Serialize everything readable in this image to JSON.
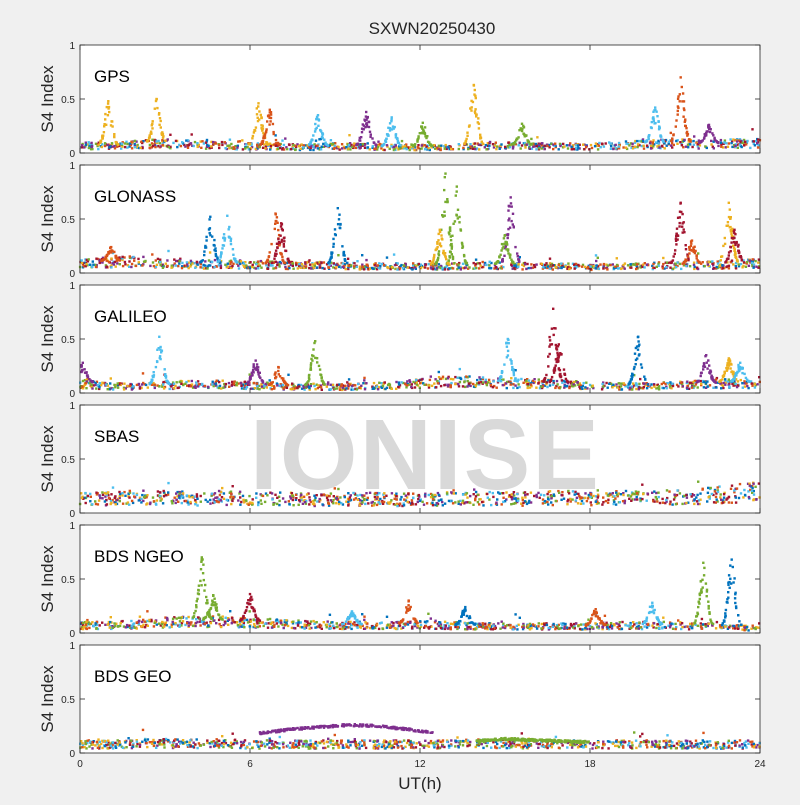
{
  "figure": {
    "title": "SXWN20250430",
    "xlabel": "UT(h)",
    "watermark": "IONISE"
  },
  "colors": {
    "background": "#f0f0f0",
    "axes_background": "#ffffff",
    "series": [
      "#0072BD",
      "#D95319",
      "#EDB120",
      "#7E2F8E",
      "#77AC30",
      "#4DBEEE",
      "#A2142F"
    ]
  },
  "chart_data": [
    {
      "type": "scatter",
      "panel": "GPS",
      "label": "GPS",
      "ylabel": "S4 Index",
      "xlim": [
        0,
        24
      ],
      "ylim": [
        0,
        1
      ],
      "xticks": [
        0,
        6,
        12,
        18,
        24
      ],
      "yticks": [
        0,
        0.5,
        1
      ],
      "baseline": [
        0.08,
        0.07,
        0.09,
        0.1,
        0.09,
        0.08,
        0.07,
        0.07,
        0.06,
        0.07,
        0.07,
        0.06,
        0.06,
        0.06,
        0.07,
        0.08,
        0.07,
        0.07,
        0.07,
        0.08,
        0.09,
        0.1,
        0.09,
        0.1,
        0.1
      ],
      "spikes": [
        {
          "x": 1.0,
          "peak": 0.48,
          "color": 2
        },
        {
          "x": 2.7,
          "peak": 0.5,
          "color": 2
        },
        {
          "x": 6.3,
          "peak": 0.46,
          "color": 2
        },
        {
          "x": 6.7,
          "peak": 0.4,
          "color": 1
        },
        {
          "x": 8.4,
          "peak": 0.35,
          "color": 5
        },
        {
          "x": 10.1,
          "peak": 0.38,
          "color": 3
        },
        {
          "x": 11.0,
          "peak": 0.33,
          "color": 5
        },
        {
          "x": 12.1,
          "peak": 0.28,
          "color": 4
        },
        {
          "x": 13.9,
          "peak": 0.63,
          "color": 2
        },
        {
          "x": 15.6,
          "peak": 0.27,
          "color": 4
        },
        {
          "x": 20.3,
          "peak": 0.42,
          "color": 5
        },
        {
          "x": 21.2,
          "peak": 0.7,
          "color": 1
        },
        {
          "x": 22.2,
          "peak": 0.26,
          "color": 3
        }
      ]
    },
    {
      "type": "scatter",
      "panel": "GLONASS",
      "label": "GLONASS",
      "ylabel": "S4 Index",
      "xlim": [
        0,
        24
      ],
      "ylim": [
        0,
        1
      ],
      "xticks": [
        0,
        6,
        12,
        18,
        24
      ],
      "yticks": [
        0,
        0.5,
        1
      ],
      "baseline": [
        0.1,
        0.11,
        0.12,
        0.1,
        0.09,
        0.09,
        0.09,
        0.08,
        0.08,
        0.08,
        0.07,
        0.07,
        0.07,
        0.07,
        0.08,
        0.08,
        0.07,
        0.07,
        0.06,
        0.07,
        0.07,
        0.08,
        0.08,
        0.09,
        0.1
      ],
      "spikes": [
        {
          "x": 1.1,
          "peak": 0.24,
          "color": 1
        },
        {
          "x": 4.6,
          "peak": 0.52,
          "color": 0
        },
        {
          "x": 5.2,
          "peak": 0.53,
          "color": 5
        },
        {
          "x": 6.9,
          "peak": 0.55,
          "color": 1
        },
        {
          "x": 7.1,
          "peak": 0.46,
          "color": 6
        },
        {
          "x": 9.1,
          "peak": 0.6,
          "color": 0
        },
        {
          "x": 12.9,
          "peak": 0.92,
          "color": 4
        },
        {
          "x": 13.3,
          "peak": 0.8,
          "color": 4
        },
        {
          "x": 12.7,
          "peak": 0.4,
          "color": 2
        },
        {
          "x": 15.2,
          "peak": 0.7,
          "color": 3
        },
        {
          "x": 15.0,
          "peak": 0.35,
          "color": 4
        },
        {
          "x": 21.2,
          "peak": 0.65,
          "color": 6
        },
        {
          "x": 21.6,
          "peak": 0.3,
          "color": 1
        },
        {
          "x": 22.9,
          "peak": 0.65,
          "color": 2
        },
        {
          "x": 23.1,
          "peak": 0.4,
          "color": 6
        }
      ]
    },
    {
      "type": "scatter",
      "panel": "GALILEO",
      "label": "GALILEO",
      "ylabel": "S4 Index",
      "xlim": [
        0,
        24
      ],
      "ylim": [
        0,
        1
      ],
      "xticks": [
        0,
        6,
        12,
        18,
        24
      ],
      "yticks": [
        0,
        0.5,
        1
      ],
      "baseline": [
        0.1,
        0.07,
        0.07,
        0.08,
        0.09,
        0.09,
        0.08,
        0.07,
        0.07,
        0.06,
        0.07,
        0.08,
        0.1,
        0.12,
        0.12,
        0.1,
        0.1,
        0.09,
        0.08,
        0.07,
        0.07,
        0.08,
        0.09,
        0.1,
        0.1
      ],
      "spikes": [
        {
          "x": 0.1,
          "peak": 0.28,
          "color": 3
        },
        {
          "x": 2.8,
          "peak": 0.52,
          "color": 5
        },
        {
          "x": 6.2,
          "peak": 0.3,
          "color": 3
        },
        {
          "x": 7.0,
          "peak": 0.24,
          "color": 1
        },
        {
          "x": 8.3,
          "peak": 0.48,
          "color": 4
        },
        {
          "x": 15.1,
          "peak": 0.5,
          "color": 5
        },
        {
          "x": 16.7,
          "peak": 0.78,
          "color": 6
        },
        {
          "x": 16.9,
          "peak": 0.45,
          "color": 6
        },
        {
          "x": 19.7,
          "peak": 0.52,
          "color": 0
        },
        {
          "x": 22.1,
          "peak": 0.35,
          "color": 3
        },
        {
          "x": 22.9,
          "peak": 0.32,
          "color": 2
        },
        {
          "x": 23.3,
          "peak": 0.28,
          "color": 5
        }
      ]
    },
    {
      "type": "scatter",
      "panel": "SBAS",
      "label": "SBAS",
      "ylabel": "S4 Index",
      "xlim": [
        0,
        24
      ],
      "ylim": [
        0,
        1
      ],
      "xticks": [
        0,
        6,
        12,
        18,
        24
      ],
      "yticks": [
        0,
        0.5,
        1
      ],
      "baseline": [
        0.15,
        0.15,
        0.16,
        0.16,
        0.15,
        0.16,
        0.15,
        0.15,
        0.14,
        0.14,
        0.15,
        0.14,
        0.14,
        0.15,
        0.15,
        0.15,
        0.15,
        0.16,
        0.15,
        0.16,
        0.16,
        0.17,
        0.18,
        0.2,
        0.22
      ],
      "spikes": []
    },
    {
      "type": "scatter",
      "panel": "BDS NGEO",
      "label": "BDS NGEO",
      "ylabel": "S4 Index",
      "xlim": [
        0,
        24
      ],
      "ylim": [
        0,
        1
      ],
      "xticks": [
        0,
        6,
        12,
        18,
        24
      ],
      "yticks": [
        0,
        0.5,
        1
      ],
      "baseline": [
        0.08,
        0.08,
        0.09,
        0.11,
        0.12,
        0.12,
        0.11,
        0.1,
        0.09,
        0.08,
        0.08,
        0.08,
        0.09,
        0.08,
        0.07,
        0.07,
        0.07,
        0.07,
        0.07,
        0.08,
        0.08,
        0.08,
        0.07,
        0.06,
        0.05
      ],
      "spikes": [
        {
          "x": 4.3,
          "peak": 0.7,
          "color": 4
        },
        {
          "x": 4.7,
          "peak": 0.35,
          "color": 4
        },
        {
          "x": 6.0,
          "peak": 0.36,
          "color": 6
        },
        {
          "x": 9.6,
          "peak": 0.2,
          "color": 5
        },
        {
          "x": 11.6,
          "peak": 0.3,
          "color": 1
        },
        {
          "x": 13.6,
          "peak": 0.24,
          "color": 0
        },
        {
          "x": 18.2,
          "peak": 0.22,
          "color": 1
        },
        {
          "x": 20.2,
          "peak": 0.28,
          "color": 5
        },
        {
          "x": 22.0,
          "peak": 0.65,
          "color": 4
        },
        {
          "x": 23.0,
          "peak": 0.68,
          "color": 0
        }
      ]
    },
    {
      "type": "scatter",
      "panel": "BDS GEO",
      "label": "BDS GEO",
      "ylabel": "S4 Index",
      "xlim": [
        0,
        24
      ],
      "ylim": [
        0,
        1
      ],
      "xticks": [
        0,
        6,
        12,
        18,
        24
      ],
      "yticks": [
        0,
        0.5,
        1
      ],
      "baseline": [
        0.09,
        0.09,
        0.1,
        0.1,
        0.1,
        0.1,
        0.09,
        0.09,
        0.09,
        0.09,
        0.09,
        0.09,
        0.09,
        0.09,
        0.1,
        0.1,
        0.09,
        0.09,
        0.09,
        0.09,
        0.09,
        0.09,
        0.09,
        0.09,
        0.09
      ],
      "spikes": [],
      "arcs": [
        {
          "x": [
            6.3,
            7.5,
            8.5,
            9.5,
            10.5,
            11.5,
            12.5
          ],
          "y": [
            0.18,
            0.22,
            0.24,
            0.26,
            0.25,
            0.22,
            0.19
          ],
          "color": 3
        },
        {
          "x": [
            14.0,
            15.0,
            16.0,
            17.0,
            18.0
          ],
          "y": [
            0.11,
            0.13,
            0.12,
            0.11,
            0.1
          ],
          "color": 4
        }
      ]
    }
  ]
}
